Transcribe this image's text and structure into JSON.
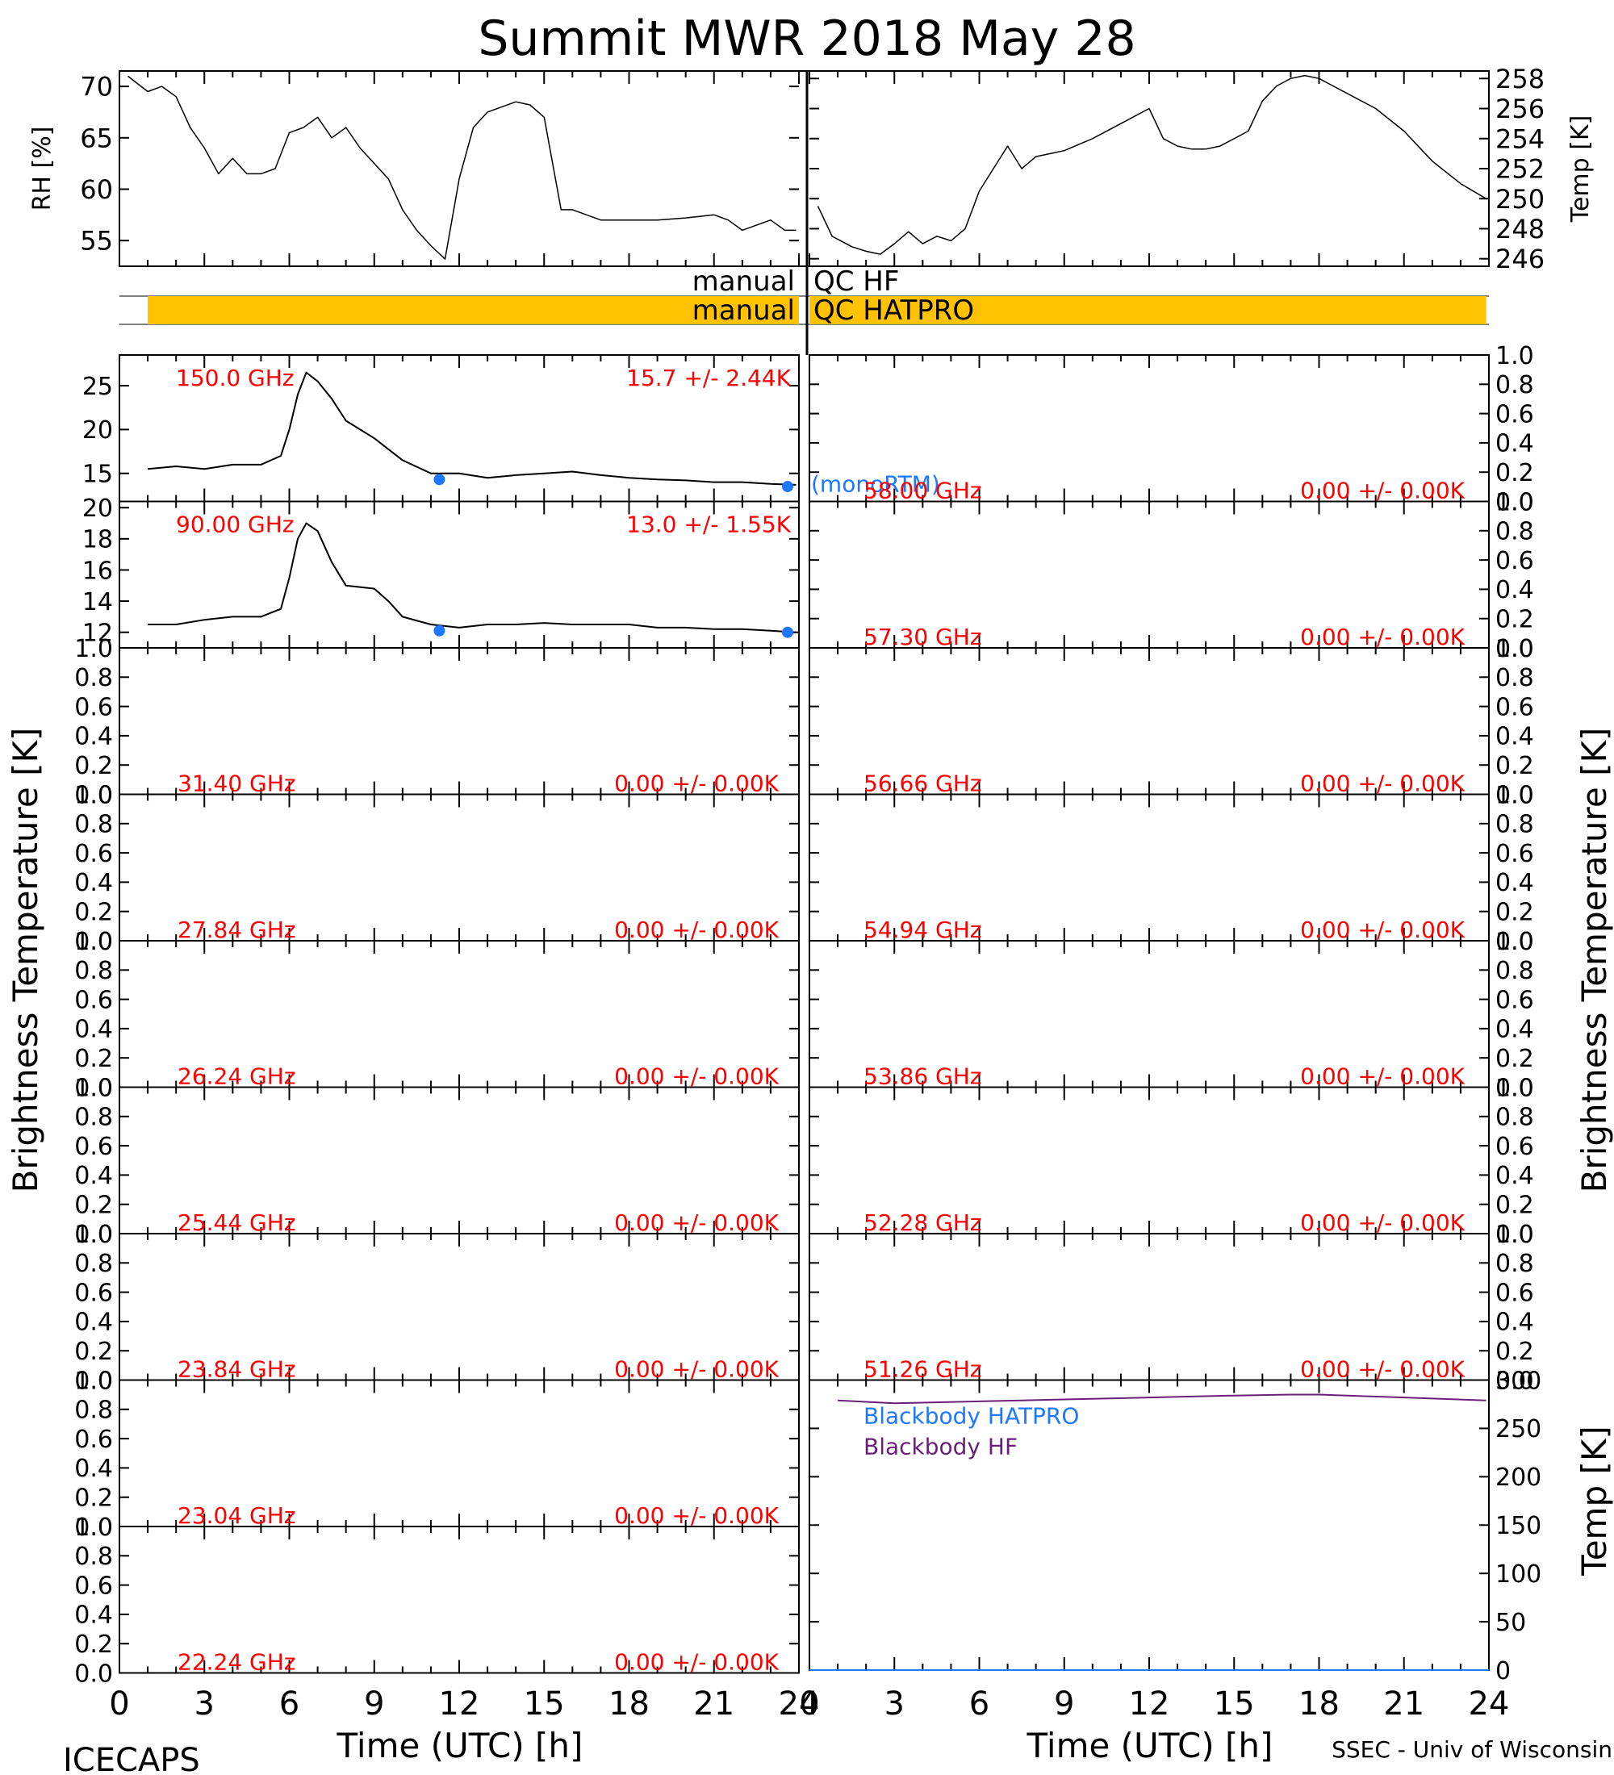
{
  "title": "Summit MWR 2018 May 28",
  "footer": {
    "left": "ICECAPS",
    "right": "SSEC - Univ of Wisconsin",
    "xlabel_left": "Time (UTC) [h]",
    "xlabel_right": "Time (UTC) [h]"
  },
  "ylabel_bt": "Brightness Temperature [K]",
  "colors": {
    "text": "#000000",
    "red": "#ff0000",
    "blue": "#1e78ff",
    "purple": "#6a1f7a",
    "qc": "#ffc200",
    "trace": "#000000"
  },
  "chart_data": {
    "type": "line",
    "x_ticks": [
      "0",
      "3",
      "6",
      "9",
      "12",
      "15",
      "18",
      "21",
      "24"
    ],
    "met": {
      "rh": {
        "ylabel": "RH [%]",
        "ylim": [
          52.5,
          71.5
        ],
        "ticks": [
          "55",
          "60",
          "65",
          "70"
        ],
        "x": [
          0.3,
          1.0,
          1.5,
          2.0,
          2.5,
          3.0,
          3.5,
          4.0,
          4.5,
          5.0,
          5.5,
          6.0,
          6.5,
          7.0,
          7.5,
          8.0,
          8.5,
          9.0,
          9.5,
          10.0,
          10.5,
          11.0,
          11.5,
          12.0,
          12.5,
          13.0,
          13.5,
          14.0,
          14.5,
          15.0,
          15.4,
          15.6,
          16.0,
          17.0,
          18.0,
          19.0,
          20.0,
          21.0,
          21.5,
          22.0,
          22.5,
          23.0,
          23.5,
          23.9
        ],
        "y": [
          71,
          69.5,
          70,
          69,
          66,
          64,
          61.5,
          63,
          61.5,
          61.5,
          62,
          65.5,
          66,
          67,
          65,
          66,
          64,
          62.5,
          61,
          58,
          56,
          54.5,
          53.2,
          61,
          66,
          67.5,
          68,
          68.5,
          68.2,
          67,
          61,
          58,
          58,
          57,
          57,
          57,
          57.2,
          57.5,
          57,
          56,
          56.5,
          57,
          56,
          56
        ]
      },
      "temp": {
        "ylabel": "Temp [K]",
        "ylim": [
          245.5,
          258.5
        ],
        "ticks": [
          "246",
          "248",
          "250",
          "252",
          "254",
          "256",
          "258"
        ],
        "x": [
          0.3,
          0.8,
          1.5,
          2.0,
          2.5,
          3.0,
          3.5,
          4.0,
          4.5,
          5.0,
          5.5,
          6.0,
          6.5,
          7.0,
          7.5,
          8.0,
          9.0,
          10.0,
          11.0,
          11.5,
          12.0,
          12.5,
          13.0,
          13.5,
          14.0,
          14.5,
          15.0,
          15.5,
          16.0,
          16.5,
          17.0,
          17.5,
          18.0,
          19.0,
          20.0,
          21.0,
          22.0,
          23.0,
          23.9
        ],
        "y": [
          249.5,
          247.5,
          246.8,
          246.5,
          246.3,
          247.0,
          247.8,
          247.0,
          247.5,
          247.2,
          248.0,
          250.5,
          252.0,
          253.5,
          252.0,
          252.8,
          253.2,
          254.0,
          255.0,
          255.5,
          256.0,
          254.0,
          253.5,
          253.3,
          253.3,
          253.5,
          254.0,
          254.5,
          256.5,
          257.5,
          258.0,
          258.2,
          258.0,
          257.0,
          256.0,
          254.5,
          252.5,
          251.0,
          250.0
        ]
      }
    },
    "qc": {
      "labels": [
        "manual",
        "QC HF",
        "manual",
        "QC HATPRO"
      ],
      "hatpro_flag_span": [
        1.0,
        23.9
      ]
    },
    "left_panels": [
      {
        "freq": "150.0 GHz",
        "stats": "15.7 +/- 2.44K",
        "ylim": [
          11.8,
          28.5
        ],
        "ticks": [
          "15",
          "20",
          "25"
        ],
        "monortm_label": "(monoRTM)",
        "monortm_x": [
          11.3,
          23.6
        ],
        "monortm_y": [
          14.3,
          13.5
        ],
        "x": [
          1.0,
          2.0,
          3.0,
          4.0,
          5.0,
          5.7,
          6.0,
          6.3,
          6.6,
          7.0,
          7.5,
          8.0,
          9.0,
          10.0,
          11.0,
          12.0,
          13.0,
          14.0,
          15.0,
          16.0,
          17.0,
          18.0,
          19.0,
          20.0,
          21.0,
          22.0,
          23.0,
          23.9
        ],
        "y": [
          15.5,
          15.8,
          15.5,
          16.0,
          16.0,
          17.0,
          20.0,
          24.0,
          26.5,
          25.5,
          23.5,
          21.0,
          19.0,
          16.5,
          15.0,
          15.0,
          14.5,
          14.8,
          15.0,
          15.2,
          14.8,
          14.5,
          14.3,
          14.2,
          14.0,
          14.0,
          13.8,
          13.7
        ]
      },
      {
        "freq": "90.00 GHz",
        "stats": "13.0 +/- 1.55K",
        "ylim": [
          11.0,
          20.4
        ],
        "ticks": [
          "12",
          "14",
          "16",
          "18",
          "20"
        ],
        "monortm_x": [
          11.3,
          23.6
        ],
        "monortm_y": [
          12.1,
          12.0
        ],
        "x": [
          1.0,
          2.0,
          3.0,
          4.0,
          5.0,
          5.7,
          6.0,
          6.3,
          6.6,
          7.0,
          7.5,
          8.0,
          9.0,
          9.5,
          10.0,
          11.0,
          12.0,
          13.0,
          14.0,
          15.0,
          16.0,
          17.0,
          18.0,
          19.0,
          20.0,
          21.0,
          22.0,
          23.0,
          23.9
        ],
        "y": [
          12.5,
          12.5,
          12.8,
          13.0,
          13.0,
          13.5,
          15.5,
          18.0,
          19.0,
          18.5,
          16.5,
          15.0,
          14.8,
          14.0,
          13.0,
          12.5,
          12.3,
          12.5,
          12.5,
          12.6,
          12.5,
          12.5,
          12.5,
          12.3,
          12.3,
          12.2,
          12.2,
          12.1,
          12.0
        ]
      },
      {
        "freq": "31.40 GHz",
        "stats": "0.00 +/- 0.00K"
      },
      {
        "freq": "27.84 GHz",
        "stats": "0.00 +/- 0.00K"
      },
      {
        "freq": "26.24 GHz",
        "stats": "0.00 +/- 0.00K"
      },
      {
        "freq": "25.44 GHz",
        "stats": "0.00 +/- 0.00K"
      },
      {
        "freq": "23.84 GHz",
        "stats": "0.00 +/- 0.00K"
      },
      {
        "freq": "23.04 GHz",
        "stats": "0.00 +/- 0.00K"
      },
      {
        "freq": "22.24 GHz",
        "stats": "0.00 +/- 0.00K"
      }
    ],
    "right_panels": [
      {
        "freq": "58.00 GHz",
        "stats": "0.00 +/- 0.00K"
      },
      {
        "freq": "57.30 GHz",
        "stats": "0.00 +/- 0.00K"
      },
      {
        "freq": "56.66 GHz",
        "stats": "0.00 +/- 0.00K"
      },
      {
        "freq": "54.94 GHz",
        "stats": "0.00 +/- 0.00K"
      },
      {
        "freq": "53.86 GHz",
        "stats": "0.00 +/- 0.00K"
      },
      {
        "freq": "52.28 GHz",
        "stats": "0.00 +/- 0.00K"
      },
      {
        "freq": "51.26 GHz",
        "stats": "0.00 +/- 0.00K"
      }
    ],
    "empty_ticks": [
      "0.0",
      "0.2",
      "0.4",
      "0.6",
      "0.8",
      "1.0"
    ],
    "blackbody": {
      "ylabel": "Temp [K]",
      "ylim": [
        0,
        300
      ],
      "ticks": [
        "0",
        "50",
        "100",
        "150",
        "200",
        "250",
        "300"
      ],
      "legend": [
        "Blackbody HATPRO",
        "Blackbody HF"
      ],
      "hf_x": [
        1.0,
        3.0,
        6.0,
        9.0,
        12.0,
        15.0,
        17.0,
        18.0,
        21.0,
        23.9
      ],
      "hf_y": [
        279,
        276,
        278,
        280,
        282,
        284,
        285,
        285,
        282,
        279
      ],
      "hatpro_y": 0
    }
  }
}
